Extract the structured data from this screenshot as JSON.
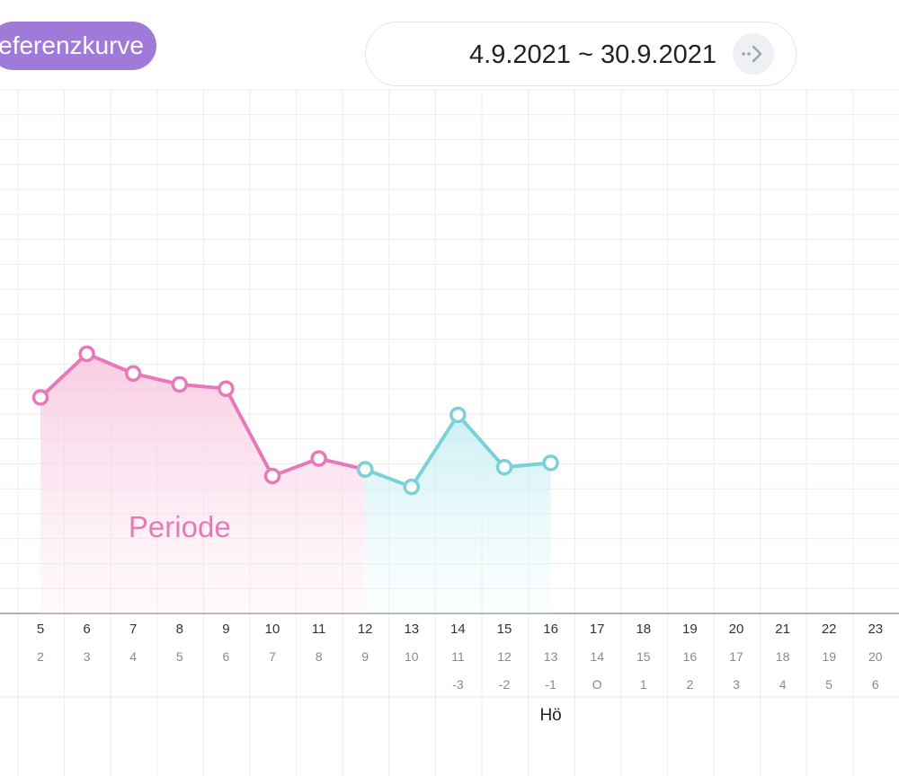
{
  "header": {
    "reference_label": "eferenzkurve",
    "date_range": "4.9.2021 ~ 30.9.2021",
    "next_icon": "arrow-right-icon"
  },
  "colors": {
    "accent_purple": "#a07ad8",
    "period_pink": "#e879b8",
    "teal": "#7bd1d8",
    "grid": "#ececec"
  },
  "chart_data": {
    "type": "line",
    "title": "",
    "xlabel": "",
    "ylabel": "",
    "grid": true,
    "x": [
      5,
      6,
      7,
      8,
      9,
      10,
      11,
      12,
      13,
      14,
      15,
      16,
      17,
      18,
      19,
      20,
      21,
      22,
      23
    ],
    "cycle_day_labels": [
      "2",
      "3",
      "4",
      "5",
      "6",
      "7",
      "8",
      "9",
      "10",
      "11",
      "12",
      "13",
      "14",
      "15",
      "16",
      "17",
      "18",
      "19",
      "20"
    ],
    "ovulation_offset_labels": [
      "",
      "",
      "",
      "",
      "",
      "",
      "",
      "",
      "",
      "-3",
      "-2",
      "-1",
      "O",
      "1",
      "2",
      "3",
      "4",
      "5",
      "6"
    ],
    "ovulation_marker_label": "Hö",
    "period_label": "Periode",
    "series": [
      {
        "phase": "period",
        "color": "#e879b8",
        "x": [
          5,
          6,
          7,
          8,
          9,
          10,
          11,
          12
        ],
        "values": [
          9.9,
          11.9,
          11.0,
          10.5,
          10.3,
          6.3,
          7.1,
          6.6
        ]
      },
      {
        "phase": "after-period",
        "color": "#7bd1d8",
        "x": [
          12,
          13,
          14,
          15,
          16
        ],
        "values": [
          6.6,
          5.8,
          9.1,
          6.7,
          6.9
        ]
      }
    ],
    "ylim": [
      0,
      24
    ]
  }
}
